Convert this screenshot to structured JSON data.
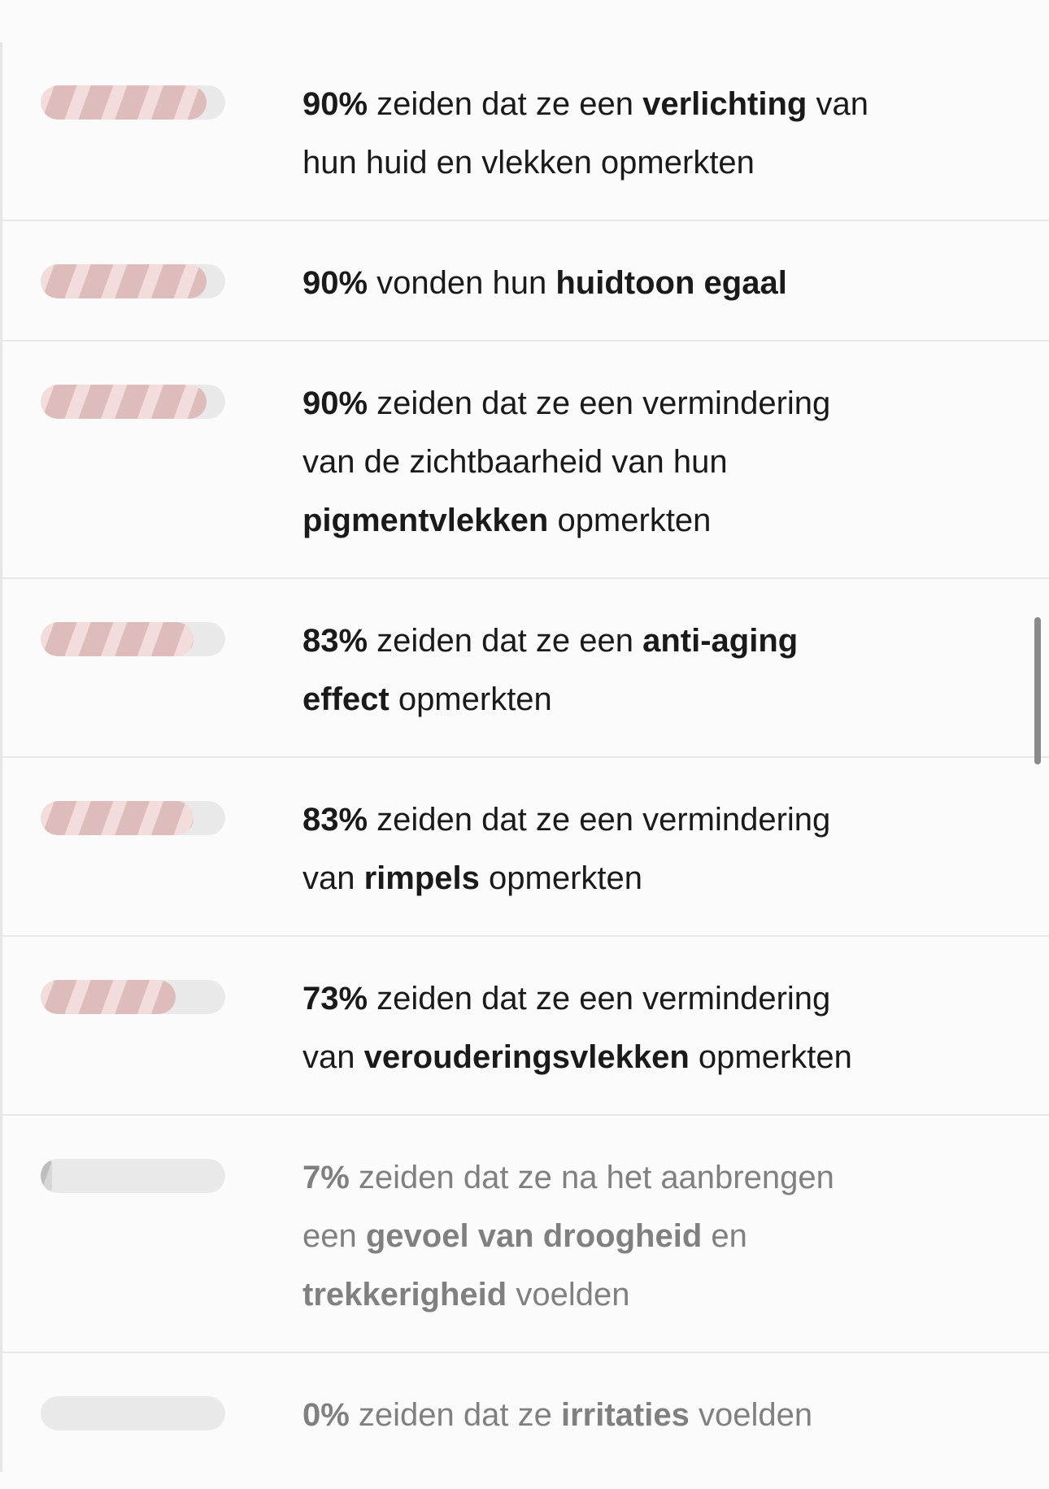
{
  "colors": {
    "fill_stripe_light": "#f2dcdc",
    "fill_stripe_dark": "#dfbcbc",
    "track": "#e9e9e9",
    "text": "#1a1a1a",
    "muted_text": "#808080"
  },
  "results": [
    {
      "percent": 90,
      "muted": false,
      "lines": [
        [
          {
            "t": "90%",
            "b": true
          },
          {
            "t": " zeiden dat ze een ",
            "b": false
          },
          {
            "t": "verlichting",
            "b": true
          },
          {
            "t": " van",
            "b": false
          }
        ],
        [
          {
            "t": "hun huid en vlekken opmerkten",
            "b": false
          }
        ]
      ]
    },
    {
      "percent": 90,
      "muted": false,
      "lines": [
        [
          {
            "t": "90%",
            "b": true
          },
          {
            "t": " vonden hun ",
            "b": false
          },
          {
            "t": "huidtoon egaal",
            "b": true
          }
        ]
      ]
    },
    {
      "percent": 90,
      "muted": false,
      "lines": [
        [
          {
            "t": "90%",
            "b": true
          },
          {
            "t": " zeiden dat ze een vermindering",
            "b": false
          }
        ],
        [
          {
            "t": "van de zichtbaarheid van hun",
            "b": false
          }
        ],
        [
          {
            "t": "pigmentvlekken",
            "b": true
          },
          {
            "t": " opmerkten",
            "b": false
          }
        ]
      ]
    },
    {
      "percent": 83,
      "muted": false,
      "lines": [
        [
          {
            "t": "83%",
            "b": true
          },
          {
            "t": " zeiden dat ze een ",
            "b": false
          },
          {
            "t": "anti-aging",
            "b": true
          }
        ],
        [
          {
            "t": "effect",
            "b": true
          },
          {
            "t": " opmerkten",
            "b": false
          }
        ]
      ]
    },
    {
      "percent": 83,
      "muted": false,
      "lines": [
        [
          {
            "t": "83%",
            "b": true
          },
          {
            "t": " zeiden dat ze een vermindering",
            "b": false
          }
        ],
        [
          {
            "t": "van ",
            "b": false
          },
          {
            "t": "rimpels",
            "b": true
          },
          {
            "t": " opmerkten",
            "b": false
          }
        ]
      ]
    },
    {
      "percent": 73,
      "muted": false,
      "lines": [
        [
          {
            "t": "73%",
            "b": true
          },
          {
            "t": " zeiden dat ze een vermindering",
            "b": false
          }
        ],
        [
          {
            "t": "van ",
            "b": false
          },
          {
            "t": "verouderingsvlekken",
            "b": true
          },
          {
            "t": " opmerkten",
            "b": false
          }
        ]
      ]
    },
    {
      "percent": 7,
      "muted": true,
      "lines": [
        [
          {
            "t": "7%",
            "b": true
          },
          {
            "t": " zeiden dat ze na het aanbrengen",
            "b": false
          }
        ],
        [
          {
            "t": "een ",
            "b": false
          },
          {
            "t": "gevoel van droogheid",
            "b": true
          },
          {
            "t": " en",
            "b": false
          }
        ],
        [
          {
            "t": "trekkerigheid",
            "b": true
          },
          {
            "t": " voelden",
            "b": false
          }
        ]
      ]
    },
    {
      "percent": 0,
      "muted": true,
      "lines": [
        [
          {
            "t": "0%",
            "b": true
          },
          {
            "t": " zeiden dat ze ",
            "b": false
          },
          {
            "t": "irritaties",
            "b": true
          },
          {
            "t": " voelden",
            "b": false
          }
        ]
      ]
    }
  ]
}
